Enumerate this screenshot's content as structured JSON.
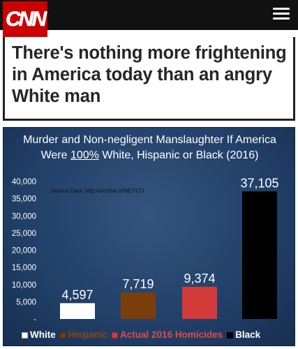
{
  "cnn": {
    "logo_text": "CNN",
    "headline": "There's nothing more frightening in America today than an angry White man",
    "colors": {
      "brand": "#cc0000",
      "header": "#111111",
      "headline": "#262626"
    }
  },
  "chart_data": {
    "type": "bar",
    "title_line1": "Murder and Non-negligent Manslaughter If America",
    "title_line2_pre": "Were ",
    "title_line2_underlined": "100%",
    "title_line2_post": "  White, Hispanic or Black (2016)",
    "source_note": "Source Data: http://archive.is/NEYCO",
    "categories": [
      "White",
      "Hispanic",
      "Actual 2016 Homicides",
      "Black"
    ],
    "values": [
      4597,
      7719,
      9374,
      37105
    ],
    "value_labels": [
      "4,597",
      "7,719",
      "9,374",
      "37,105"
    ],
    "colors": [
      "#ffffff",
      "#7a3e0c",
      "#d33a3a",
      "#000000"
    ],
    "label_colors": [
      "#ffffff",
      "#8a4510",
      "#e04a4a",
      "#ffffff"
    ],
    "ylim": [
      0,
      40000
    ],
    "yticks": [
      "-",
      "5,000",
      "10,000",
      "15,000",
      "20,000",
      "25,000",
      "30,000",
      "35,000",
      "40,000"
    ],
    "grid": false,
    "legend_position": "bottom"
  }
}
